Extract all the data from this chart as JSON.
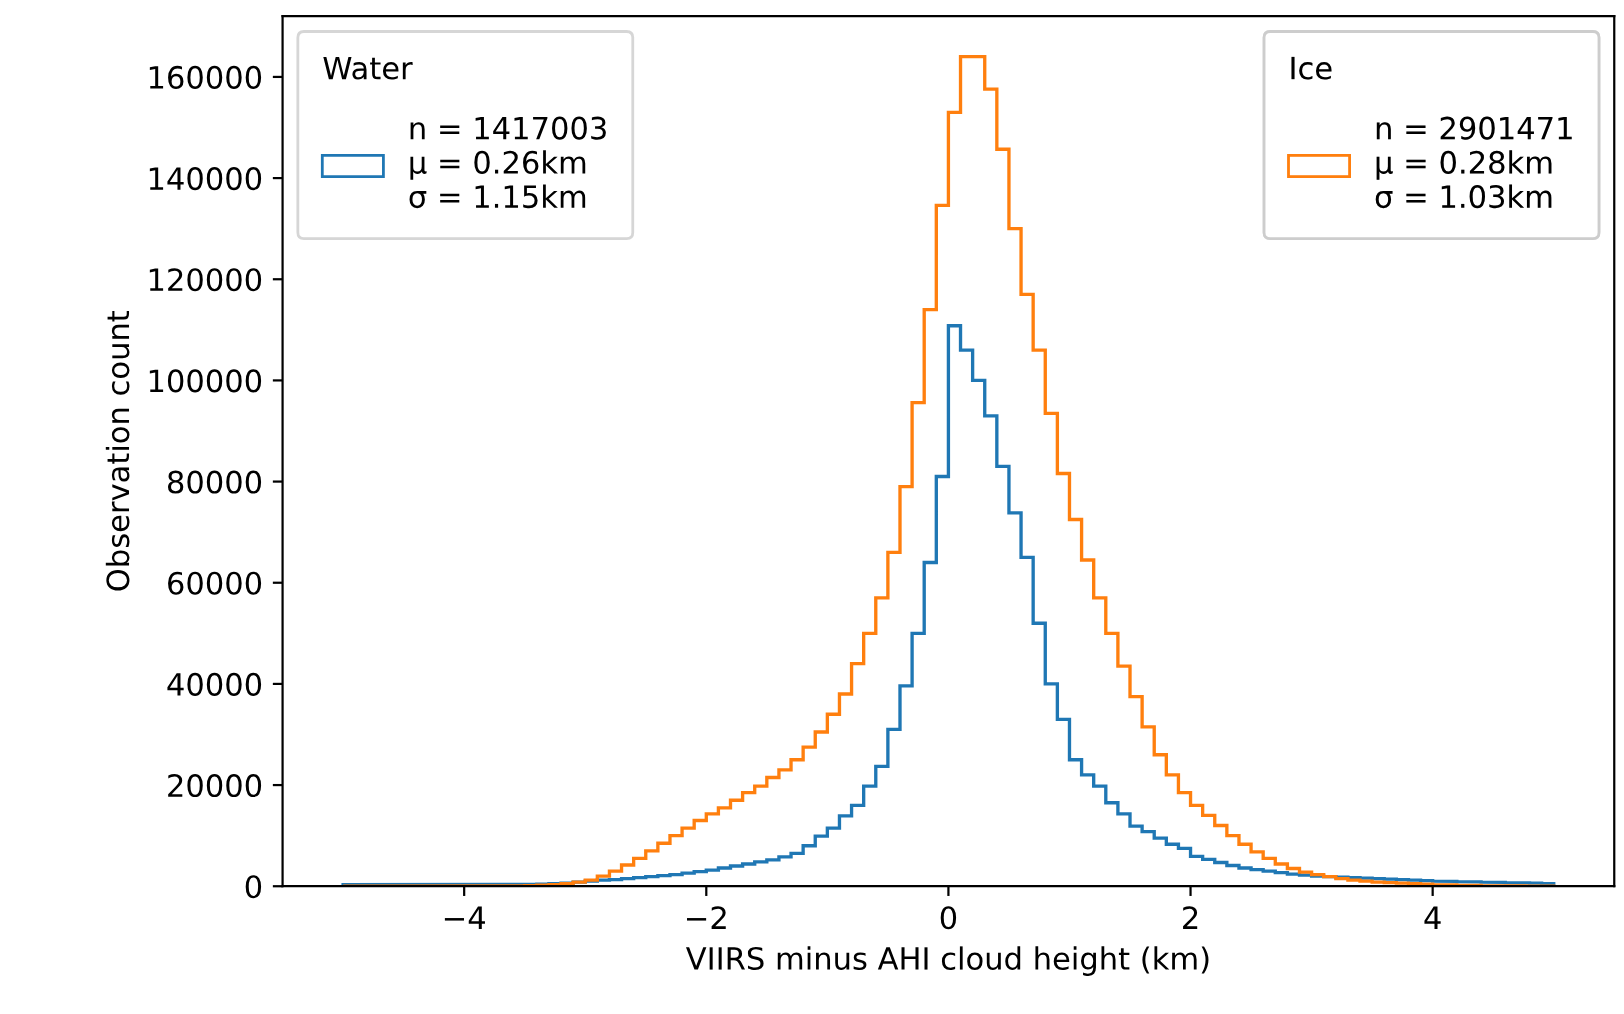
{
  "chart_data": {
    "type": "histogram",
    "xlabel": "VIIRS minus AHI cloud height (km)",
    "ylabel": "Observation count",
    "legend_title": [
      "Water",
      "Ice"
    ],
    "legend": [
      "top left",
      "top right"
    ],
    "bins": [
      -5.0,
      -4.9,
      -4.8,
      -4.7,
      -4.6,
      -4.5,
      -4.4,
      -4.3,
      -4.2,
      -4.1,
      -4.0,
      -3.9,
      -3.8,
      -3.7,
      -3.6,
      -3.5,
      -3.4,
      -3.3,
      -3.2,
      -3.1,
      -3.0,
      -2.9,
      -2.8,
      -2.7,
      -2.6,
      -2.5,
      -2.4,
      -2.3,
      -2.2,
      -2.1,
      -2.0,
      -1.9,
      -1.8,
      -1.7,
      -1.6,
      -1.5,
      -1.4,
      -1.3,
      -1.2,
      -1.1,
      -1.0,
      -0.9,
      -0.8,
      -0.7,
      -0.6,
      -0.5,
      -0.4,
      -0.3,
      -0.2,
      -0.1,
      0.0,
      0.1,
      0.2,
      0.3,
      0.4,
      0.5,
      0.6,
      0.7,
      0.8,
      0.9,
      1.0,
      1.1,
      1.2,
      1.3,
      1.4,
      1.5,
      1.6,
      1.7,
      1.8,
      1.9,
      2.0,
      2.1,
      2.2,
      2.3,
      2.4,
      2.5,
      2.6,
      2.7,
      2.8,
      2.9,
      3.0,
      3.1,
      3.2,
      3.3,
      3.4,
      3.5,
      3.6,
      3.7,
      3.8,
      3.9,
      4.0,
      4.1,
      4.2,
      4.3,
      4.4,
      4.5,
      4.6,
      4.7,
      4.8,
      4.9,
      5.0
    ],
    "series": [
      {
        "name": "n = 1417003\nμ = 0.26km\nσ = 1.15km",
        "color": "#1f77b4",
        "values": [
          300,
          300,
          300,
          300,
          300,
          300,
          300,
          300,
          300,
          300,
          300,
          300,
          300,
          300,
          300,
          350,
          400,
          500,
          600,
          800,
          1000,
          1200,
          1300,
          1500,
          1700,
          1900,
          2100,
          2300,
          2600,
          2900,
          3200,
          3600,
          4000,
          4400,
          4800,
          5200,
          5800,
          6500,
          8000,
          9900,
          11500,
          13900,
          16000,
          19800,
          23700,
          31000,
          39600,
          50000,
          64000,
          81000,
          110800,
          106000,
          100000,
          93000,
          83000,
          73800,
          65000,
          52000,
          40000,
          33000,
          25000,
          22000,
          19800,
          16500,
          14300,
          11900,
          10800,
          9500,
          8300,
          7500,
          5900,
          5300,
          4700,
          4100,
          3600,
          3300,
          3000,
          2700,
          2400,
          2200,
          2000,
          1900,
          1800,
          1700,
          1600,
          1500,
          1400,
          1300,
          1200,
          1100,
          1000,
          950,
          900,
          850,
          800,
          750,
          700,
          650,
          600,
          500
        ]
      },
      {
        "name": "n = 2901471\nμ = 0.28km\nσ = 1.03km",
        "color": "#ff7f0e",
        "values": [
          0,
          0,
          0,
          0,
          0,
          0,
          0,
          0,
          0,
          0,
          0,
          0,
          0,
          0,
          50,
          100,
          200,
          300,
          500,
          800,
          1200,
          2000,
          3000,
          4200,
          5500,
          7000,
          8500,
          10000,
          11500,
          13000,
          14300,
          15500,
          17000,
          18500,
          19800,
          21500,
          23000,
          25000,
          27500,
          30500,
          34000,
          38000,
          44000,
          50000,
          57000,
          66000,
          79000,
          95600,
          114000,
          134600,
          153000,
          164000,
          164000,
          157600,
          145700,
          130000,
          117000,
          106000,
          93500,
          81600,
          72500,
          64500,
          57000,
          50000,
          43500,
          37500,
          31500,
          26000,
          22000,
          18500,
          16000,
          14000,
          12000,
          10000,
          8300,
          6800,
          5500,
          4400,
          3500,
          2800,
          2300,
          1900,
          1500,
          1200,
          1000,
          800,
          700,
          600,
          500,
          400,
          300,
          250,
          200,
          150,
          100,
          80,
          60,
          40,
          30,
          20
        ]
      }
    ],
    "xlim": [
      -5.5,
      5.5
    ],
    "xticks": [
      {
        "value": -4,
        "label": "−4"
      },
      {
        "value": -2,
        "label": "−2"
      },
      0,
      2,
      4
    ],
    "ylim": [
      0,
      172000
    ],
    "yticks": [
      0,
      20000,
      40000,
      60000,
      80000,
      100000,
      120000,
      140000,
      160000
    ],
    "grid": false
  }
}
